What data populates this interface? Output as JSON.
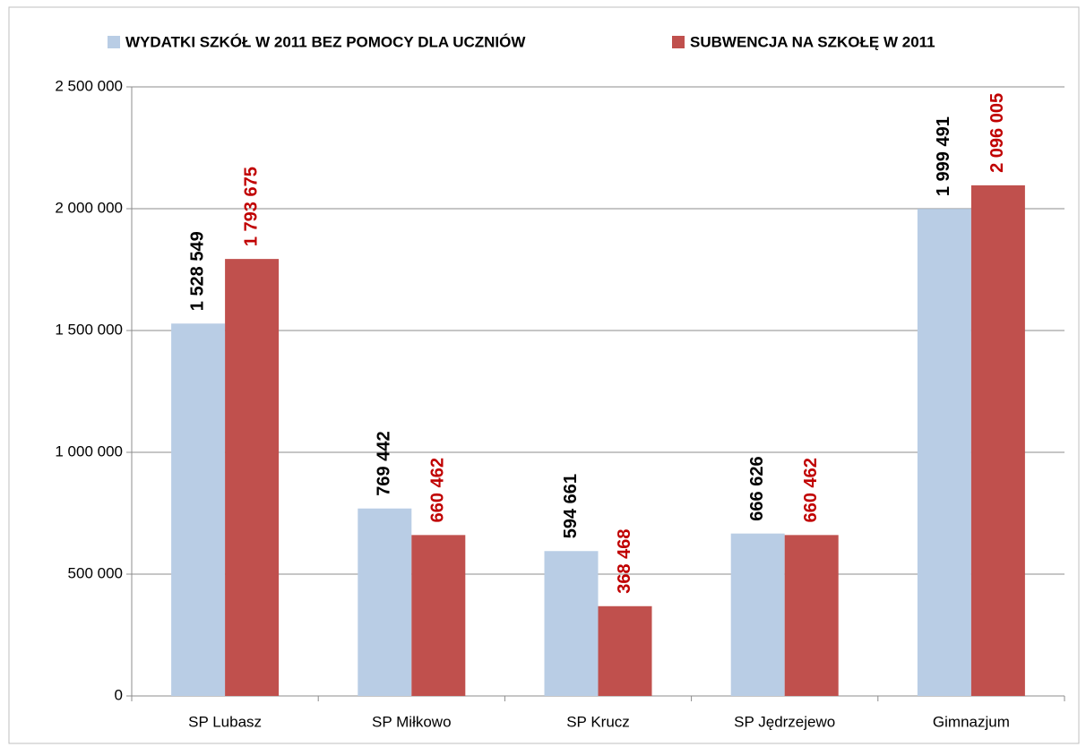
{
  "chart_data": {
    "type": "bar",
    "categories": [
      "SP Lubasz",
      "SP Miłkowo",
      "SP Krucz",
      "SP Jędrzejewo",
      "Gimnazjum"
    ],
    "series": [
      {
        "name": "WYDATKI SZKÓŁ W 2011 BEZ POMOCY DLA UCZNIÓW",
        "color": "#b9cde5",
        "label_color": "#000000",
        "values": [
          1528549,
          769442,
          594661,
          666626,
          1999491
        ],
        "value_labels": [
          "1 528 549",
          "769 442",
          "594 661",
          "666 626",
          "1 999 491"
        ]
      },
      {
        "name": "SUBWENCJA NA SZKOŁĘ W 2011",
        "color": "#c0504d",
        "label_color": "#c00000",
        "values": [
          1793675,
          660462,
          368468,
          660462,
          2096005
        ],
        "value_labels": [
          "1 793 675",
          "660 462",
          "368 468",
          "660 462",
          "2 096 005"
        ]
      }
    ],
    "ylim": [
      0,
      2500000
    ],
    "yticks": [
      {
        "value": 0,
        "label": "0"
      },
      {
        "value": 500000,
        "label": "500 000"
      },
      {
        "value": 1000000,
        "label": "1 000 000"
      },
      {
        "value": 1500000,
        "label": "1 500 000"
      },
      {
        "value": 2000000,
        "label": "2 000 000"
      },
      {
        "value": 2500000,
        "label": "2 500 000"
      }
    ],
    "grid": true,
    "legend": "top"
  }
}
